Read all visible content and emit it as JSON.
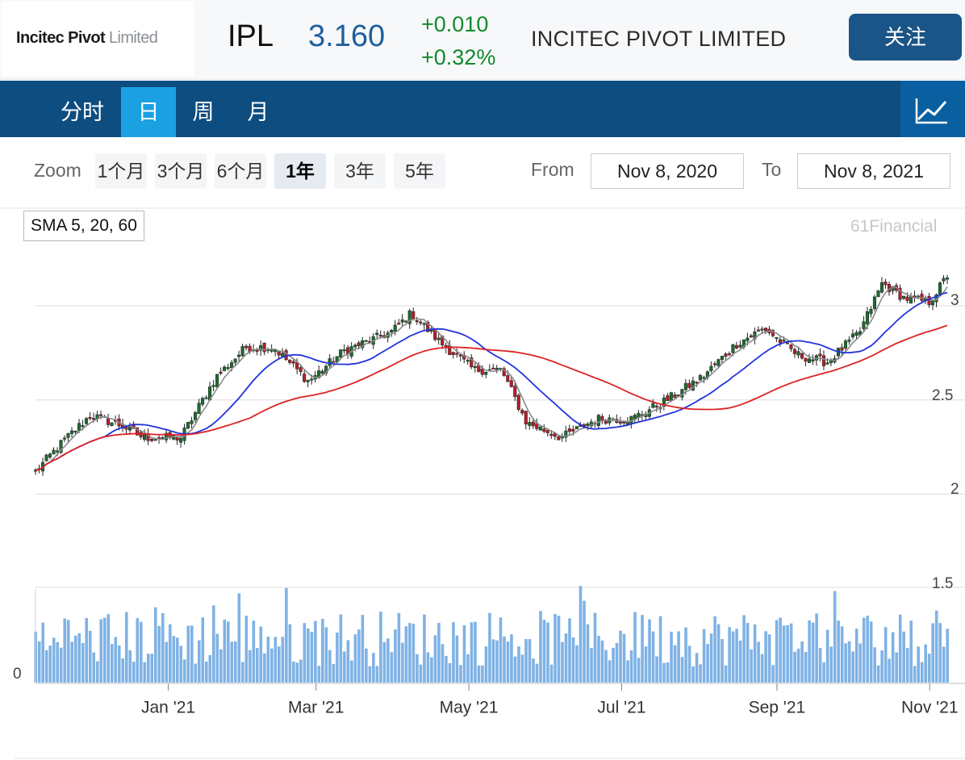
{
  "header": {
    "logo_brand": "Incitec Pivot",
    "logo_suffix": "Limited",
    "ticker": "IPL",
    "price": "3.160",
    "change_abs": "+0.010",
    "change_pct": "+0.32%",
    "company_name": "INCITEC PIVOT LIMITED",
    "follow_label": "关注",
    "change_color": "#118a2a",
    "price_color": "#1f5f9e"
  },
  "tabs": [
    {
      "label": "分时",
      "active": false
    },
    {
      "label": "日",
      "active": true
    },
    {
      "label": "周",
      "active": false
    },
    {
      "label": "月",
      "active": false
    }
  ],
  "chart_icon": "chart-trend-icon",
  "toolbar": {
    "zoom_label": "Zoom",
    "zoom_buttons": [
      "1个月",
      "3个月",
      "6个月",
      "1年",
      "3年",
      "5年"
    ],
    "zoom_active": "1年",
    "from_label": "From",
    "from_date": "Nov 8, 2020",
    "to_label": "To",
    "to_date": "Nov 8, 2021"
  },
  "indicator_label": "SMA 5, 20, 60",
  "credit": "61Financial",
  "chart_data": {
    "type": "candlestick",
    "y_ticks": [
      "3",
      "2.5",
      "2",
      "1.5"
    ],
    "volume_ticks": [
      "0"
    ],
    "x_ticks": [
      "Jan '21",
      "Mar '21",
      "May '21",
      "Jul '21",
      "Sep '21",
      "Nov '21"
    ],
    "ylim": [
      1.5,
      3.2
    ],
    "grid": true,
    "series": [
      {
        "name": "SMA 5",
        "color": "#8a8a8a"
      },
      {
        "name": "SMA 20",
        "color": "#2233dd"
      },
      {
        "name": "SMA 60",
        "color": "#dd2222"
      }
    ],
    "close_path": [
      [
        "2020-11-09",
        2.12
      ],
      [
        "2020-11-20",
        2.28
      ],
      [
        "2020-12-01",
        2.42
      ],
      [
        "2020-12-14",
        2.36
      ],
      [
        "2020-12-22",
        2.3
      ],
      [
        "2021-01-06",
        2.3
      ],
      [
        "2021-01-20",
        2.62
      ],
      [
        "2021-02-01",
        2.78
      ],
      [
        "2021-02-12",
        2.78
      ],
      [
        "2021-02-26",
        2.6
      ],
      [
        "2021-03-12",
        2.76
      ],
      [
        "2021-03-31",
        2.86
      ],
      [
        "2021-04-08",
        2.96
      ],
      [
        "2021-04-20",
        2.8
      ],
      [
        "2021-05-03",
        2.66
      ],
      [
        "2021-05-14",
        2.66
      ],
      [
        "2021-05-24",
        2.38
      ],
      [
        "2021-06-07",
        2.3
      ],
      [
        "2021-06-21",
        2.4
      ],
      [
        "2021-07-05",
        2.4
      ],
      [
        "2021-07-19",
        2.5
      ],
      [
        "2021-08-02",
        2.62
      ],
      [
        "2021-08-16",
        2.8
      ],
      [
        "2021-08-27",
        2.88
      ],
      [
        "2021-09-09",
        2.74
      ],
      [
        "2021-09-21",
        2.7
      ],
      [
        "2021-10-04",
        2.86
      ],
      [
        "2021-10-13",
        3.12
      ],
      [
        "2021-10-22",
        3.04
      ],
      [
        "2021-11-01",
        3.02
      ],
      [
        "2021-11-08",
        3.16
      ]
    ]
  }
}
